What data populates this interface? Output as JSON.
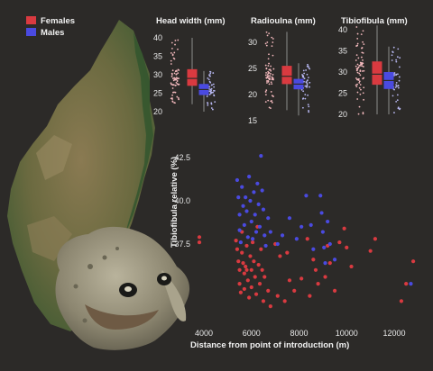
{
  "colors": {
    "background": "#2c2a28",
    "females": "#d93a40",
    "males": "#4a4ae0",
    "females_light": "#f2b8bc",
    "males_light": "#b8b8f2"
  },
  "illustrations": [
    "madagascar-satellite-map",
    "toad-photo"
  ],
  "chart_data": [
    {
      "type": "box",
      "title": "Head width (mm)",
      "ylim": [
        20,
        40
      ],
      "yticks": [
        20,
        25,
        30,
        35,
        40
      ],
      "series": [
        {
          "name": "Females",
          "q1": 27,
          "median": 29,
          "q3": 31.5,
          "min": 22,
          "max": 40
        },
        {
          "name": "Males",
          "q1": 24.5,
          "median": 26,
          "q3": 27.5,
          "min": 20,
          "max": 31
        }
      ]
    },
    {
      "type": "box",
      "title": "Radioulna (mm)",
      "ylim": [
        15,
        30
      ],
      "yticks": [
        15,
        20,
        25,
        30
      ],
      "series": [
        {
          "name": "Females",
          "q1": 22,
          "median": 23.5,
          "q3": 25.5,
          "min": 17,
          "max": 32
        },
        {
          "name": "Males",
          "q1": 21,
          "median": 22,
          "q3": 23,
          "min": 16,
          "max": 26
        }
      ]
    },
    {
      "type": "box",
      "title": "Tibiofibula (mm)",
      "ylim": [
        20,
        40
      ],
      "yticks": [
        20,
        25,
        30,
        35,
        40
      ],
      "series": [
        {
          "name": "Females",
          "q1": 27,
          "median": 29.5,
          "q3": 32.5,
          "min": 20,
          "max": 41
        },
        {
          "name": "Males",
          "q1": 26,
          "median": 28,
          "q3": 30,
          "min": 20,
          "max": 36
        }
      ]
    },
    {
      "type": "scatter",
      "xlabel": "Distance from point of introduction (m)",
      "ylabel": "Tibiofibula relative (%)",
      "xticks": [
        4000,
        6000,
        8000,
        10000,
        12000
      ],
      "yticks": [
        37.5,
        40.0,
        42.5
      ],
      "xlim": [
        3500,
        13000
      ],
      "ylim": [
        33.5,
        42.8
      ],
      "legend": {
        "placement": "top-left",
        "entries": [
          "Females",
          "Males"
        ]
      },
      "series": [
        {
          "name": "Females",
          "points": [
            [
              3810,
              37.9
            ],
            [
              3810,
              37.6
            ],
            [
              5350,
              37.7
            ],
            [
              5400,
              37.2
            ],
            [
              5450,
              36.5
            ],
            [
              5500,
              36.0
            ],
            [
              5500,
              35.2
            ],
            [
              5550,
              34.7
            ],
            [
              5600,
              38.2
            ],
            [
              5600,
              37.0
            ],
            [
              5650,
              36.4
            ],
            [
              5700,
              35.8
            ],
            [
              5700,
              34.9
            ],
            [
              5750,
              36.2
            ],
            [
              5800,
              37.4
            ],
            [
              5800,
              36.0
            ],
            [
              5850,
              35.4
            ],
            [
              5900,
              34.4
            ],
            [
              5950,
              36.8
            ],
            [
              6000,
              36.0
            ],
            [
              6000,
              35.0
            ],
            [
              6050,
              37.6
            ],
            [
              6100,
              36.5
            ],
            [
              6150,
              35.6
            ],
            [
              6200,
              34.6
            ],
            [
              6250,
              38.5
            ],
            [
              6300,
              36.3
            ],
            [
              6350,
              35.2
            ],
            [
              6400,
              37.2
            ],
            [
              6450,
              36.0
            ],
            [
              6500,
              34.2
            ],
            [
              6550,
              35.6
            ],
            [
              6700,
              34.8
            ],
            [
              6800,
              33.9
            ],
            [
              7000,
              37.5
            ],
            [
              7100,
              34.5
            ],
            [
              7200,
              36.8
            ],
            [
              7400,
              34.2
            ],
            [
              7500,
              37.0
            ],
            [
              7600,
              35.4
            ],
            [
              7800,
              34.8
            ],
            [
              8100,
              35.5
            ],
            [
              8350,
              37.8
            ],
            [
              8450,
              34.5
            ],
            [
              8600,
              36.6
            ],
            [
              8700,
              36.0
            ],
            [
              8800,
              35.2
            ],
            [
              9100,
              35.6
            ],
            [
              9200,
              37.4
            ],
            [
              9300,
              36.4
            ],
            [
              9500,
              34.8
            ],
            [
              9700,
              37.6
            ],
            [
              9900,
              38.4
            ],
            [
              10000,
              37.3
            ],
            [
              10200,
              36.2
            ],
            [
              11000,
              37.1
            ],
            [
              11200,
              37.8
            ],
            [
              12300,
              34.2
            ],
            [
              12500,
              35.2
            ],
            [
              12800,
              36.5
            ]
          ]
        },
        {
          "name": "Males",
          "points": [
            [
              5400,
              41.2
            ],
            [
              5450,
              40.2
            ],
            [
              5500,
              39.2
            ],
            [
              5500,
              38.3
            ],
            [
              5550,
              37.6
            ],
            [
              5600,
              40.8
            ],
            [
              5650,
              39.7
            ],
            [
              5700,
              38.6
            ],
            [
              5750,
              40.2
            ],
            [
              5800,
              39.4
            ],
            [
              5850,
              37.9
            ],
            [
              5900,
              41.4
            ],
            [
              5950,
              40.0
            ],
            [
              6000,
              38.8
            ],
            [
              6050,
              37.8
            ],
            [
              6100,
              40.5
            ],
            [
              6150,
              39.2
            ],
            [
              6200,
              38.2
            ],
            [
              6250,
              41.0
            ],
            [
              6300,
              39.8
            ],
            [
              6350,
              38.5
            ],
            [
              6400,
              42.6
            ],
            [
              6450,
              40.6
            ],
            [
              6500,
              39.5
            ],
            [
              6550,
              38.0
            ],
            [
              6600,
              37.4
            ],
            [
              6700,
              39.0
            ],
            [
              6800,
              38.2
            ],
            [
              7100,
              37.5
            ],
            [
              7300,
              38.0
            ],
            [
              7600,
              39.0
            ],
            [
              7900,
              37.8
            ],
            [
              8100,
              38.5
            ],
            [
              8300,
              40.3
            ],
            [
              8500,
              38.6
            ],
            [
              8600,
              37.2
            ],
            [
              8900,
              40.3
            ],
            [
              8950,
              39.3
            ],
            [
              9000,
              38.2
            ],
            [
              9050,
              37.3
            ],
            [
              9100,
              36.4
            ],
            [
              9200,
              38.8
            ],
            [
              9300,
              37.5
            ],
            [
              9500,
              36.6
            ],
            [
              12700,
              35.2
            ]
          ]
        }
      ]
    }
  ]
}
